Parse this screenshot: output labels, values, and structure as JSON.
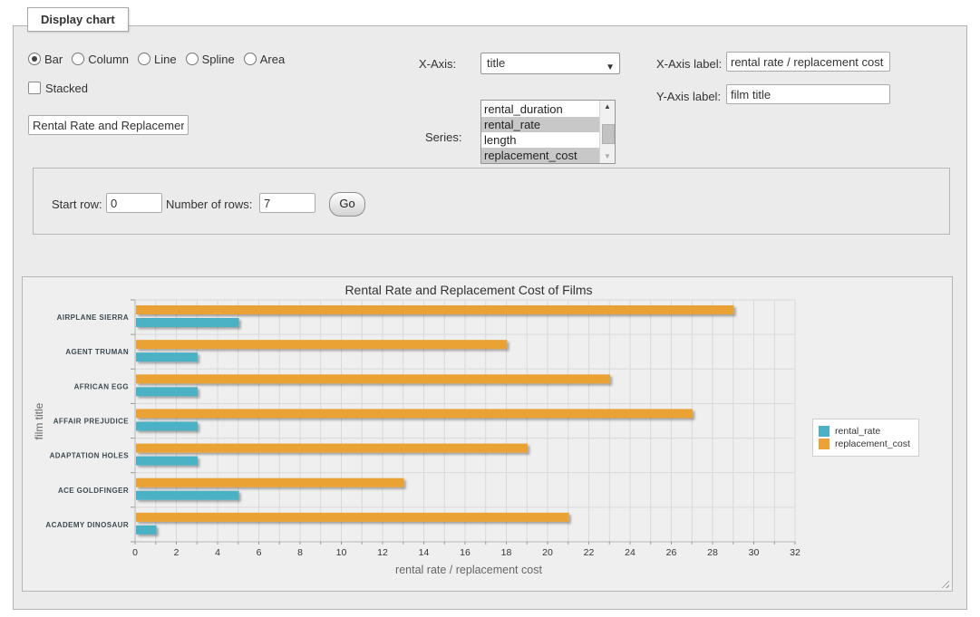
{
  "panel": {
    "legend": "Display chart",
    "chart_types": [
      {
        "label": "Bar",
        "selected": true
      },
      {
        "label": "Column",
        "selected": false
      },
      {
        "label": "Line",
        "selected": false
      },
      {
        "label": "Spline",
        "selected": false
      },
      {
        "label": "Area",
        "selected": false
      }
    ],
    "stacked": {
      "label": "Stacked",
      "checked": false
    },
    "title_input": {
      "value": "Rental Rate and Replacement Cost of Films"
    },
    "x_axis": {
      "label": "X-Axis:",
      "value": "title"
    },
    "series": {
      "label": "Series:",
      "options": [
        {
          "label": "rental_duration",
          "selected": false
        },
        {
          "label": "rental_rate",
          "selected": true
        },
        {
          "label": "length",
          "selected": false
        },
        {
          "label": "replacement_cost",
          "selected": true
        }
      ]
    },
    "x_axis_label": {
      "label": "X-Axis label:",
      "value": "rental rate / replacement cost"
    },
    "y_axis_label": {
      "label": "Y-Axis label:",
      "value": "film title"
    }
  },
  "row_controls": {
    "start_row_label": "Start row:",
    "start_row_value": "0",
    "num_rows_label": "Number of rows:",
    "num_rows_value": "7",
    "go_label": "Go"
  },
  "chart_data": {
    "type": "bar",
    "title": "Rental Rate and Replacement Cost of Films",
    "xlabel": "rental rate / replacement cost",
    "ylabel": "film title",
    "categories": [
      "AIRPLANE SIERRA",
      "AGENT TRUMAN",
      "AFRICAN EGG",
      "AFFAIR PREJUDICE",
      "ADAPTATION HOLES",
      "ACE GOLDFINGER",
      "ACADEMY DINOSAUR"
    ],
    "series": [
      {
        "name": "rental_rate",
        "color": "#4cb1c4",
        "values": [
          4.99,
          2.99,
          2.99,
          2.99,
          2.99,
          4.99,
          0.99
        ]
      },
      {
        "name": "replacement_cost",
        "color": "#eba236",
        "values": [
          28.99,
          17.99,
          22.99,
          26.99,
          18.99,
          12.99,
          20.99
        ]
      }
    ],
    "xlim": [
      0,
      32
    ],
    "x_tick_step": 2,
    "minor_grid_step": 1,
    "grid": true,
    "legend_position": "right",
    "colors": {
      "grid": "#d9d9d9",
      "axis": "#b5b5b5",
      "tick": "#999999",
      "tick_label": "#333333",
      "category_label": "#3c4a52"
    }
  }
}
